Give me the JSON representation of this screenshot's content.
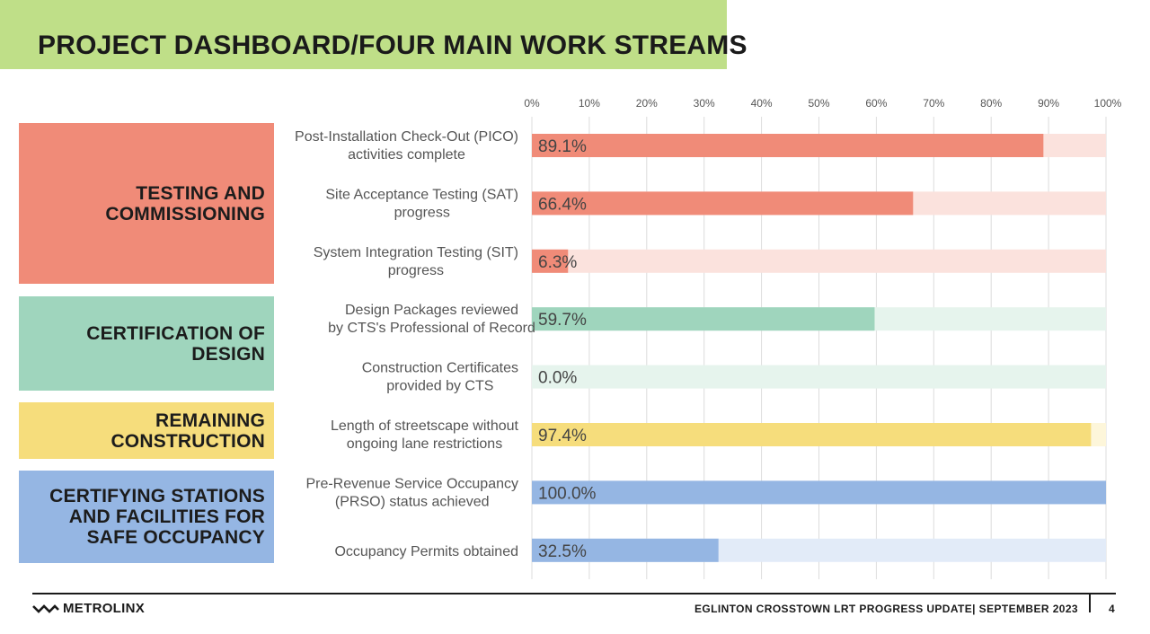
{
  "header": {
    "title": "PROJECT DASHBOARD/FOUR  MAIN WORK STREAMS"
  },
  "groups": [
    {
      "label": "TESTING AND\nCOMMISSIONING",
      "color": "#f08b78"
    },
    {
      "label": "CERTIFICATION OF\nDESIGN",
      "color": "#9fd5bd"
    },
    {
      "label": "REMAINING\nCONSTRUCTION",
      "color": "#f6dd7c"
    },
    {
      "label": "CERTIFYING STATIONS\nAND FACILITIES FOR\nSAFE OCCUPANCY",
      "color": "#95b6e3"
    }
  ],
  "chart_data": {
    "type": "bar",
    "orientation": "horizontal",
    "x_ticks": [
      "0%",
      "10%",
      "20%",
      "30%",
      "40%",
      "50%",
      "60%",
      "70%",
      "80%",
      "90%",
      "100%"
    ],
    "xlim": [
      0,
      100
    ],
    "grid": true,
    "categories": [
      [
        "Post-Installation Check-Out (PICO)",
        "activities complete"
      ],
      [
        "Site Acceptance Testing (SAT)",
        "progress"
      ],
      [
        "System Integration Testing (SIT)",
        "progress"
      ],
      [
        "Design Packages reviewed",
        "by CTS's Professional of Record"
      ],
      [
        "Construction Certificates",
        "provided by CTS"
      ],
      [
        "Length of streetscape without",
        "ongoing lane restrictions"
      ],
      [
        "Pre-Revenue Service Occupancy",
        "(PRSO) status achieved"
      ],
      [
        "Occupancy Permits obtained"
      ]
    ],
    "values": [
      89.1,
      66.4,
      6.3,
      59.7,
      0.0,
      97.4,
      100.0,
      32.5
    ],
    "value_labels": [
      "89.1%",
      "66.4%",
      "6.3%",
      "59.7%",
      "0.0%",
      "97.4%",
      "100.0%",
      "32.5%"
    ],
    "group_index": [
      0,
      0,
      0,
      1,
      1,
      2,
      3,
      3
    ],
    "bar_colors": [
      "#f08b78",
      "#f08b78",
      "#f08b78",
      "#9fd5bd",
      "#9fd5bd",
      "#f6dd7c",
      "#95b6e3",
      "#95b6e3"
    ],
    "track_colors": [
      "#fbe2dd",
      "#fbe2dd",
      "#fbe2dd",
      "#e6f4ed",
      "#e6f4ed",
      "#fdf6da",
      "#e2ebf8",
      "#e2ebf8"
    ]
  },
  "footer": {
    "logo_text": "METROLINX",
    "report_title": "EGLINTON CROSSTOWN LRT PROGRESS UPDATE| SEPTEMBER  2023",
    "page_number": "4"
  }
}
